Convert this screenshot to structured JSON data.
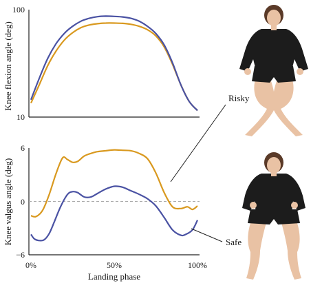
{
  "colors": {
    "risky": "#d9991f",
    "safe": "#4a52a3",
    "zero_line": "#aaaaaa",
    "axis": "#222222",
    "skin": "#e9c2a4",
    "shirt": "#1c1c1c",
    "hair": "#5a3a28"
  },
  "chart_data": [
    {
      "type": "line",
      "title": "",
      "xlabel": "",
      "ylabel": "Knee flexion angle (deg)",
      "yscale": "log",
      "ylim": [
        10,
        100
      ],
      "yticks": [
        "100",
        "10"
      ],
      "xlim": [
        0,
        100
      ],
      "series": [
        {
          "name": "Risky",
          "x": [
            0,
            5,
            10,
            15,
            20,
            25,
            30,
            35,
            40,
            45,
            50,
            55,
            60,
            65,
            70,
            75,
            80,
            85,
            90,
            95,
            100
          ],
          "values": [
            13.5,
            20,
            30,
            41,
            52,
            61,
            68,
            72,
            74,
            75,
            75,
            74.5,
            73,
            70,
            65,
            57,
            45,
            31,
            20,
            14,
            11.5
          ]
        },
        {
          "name": "Safe",
          "x": [
            0,
            5,
            10,
            15,
            20,
            25,
            30,
            35,
            40,
            45,
            50,
            55,
            60,
            65,
            70,
            75,
            80,
            85,
            90,
            95,
            100
          ],
          "values": [
            14.5,
            23,
            35,
            48,
            60,
            70,
            78,
            83,
            86,
            87,
            86.5,
            85.5,
            83,
            78,
            70,
            60,
            47,
            32,
            20,
            14,
            11.5
          ]
        }
      ]
    },
    {
      "type": "line",
      "title": "",
      "xlabel": "Landing phase",
      "ylabel": "Knee valgus angle (deg)",
      "ylim": [
        -6,
        6
      ],
      "yticks": [
        "6",
        "0",
        "−6"
      ],
      "xticks": [
        "0%",
        "50%",
        "100%"
      ],
      "xlim": [
        0,
        100
      ],
      "zero_line": true,
      "series": [
        {
          "name": "Risky",
          "x": [
            0,
            3,
            7,
            11,
            15,
            19,
            22,
            25,
            28,
            32,
            36,
            40,
            45,
            50,
            55,
            60,
            65,
            70,
            75,
            80,
            85,
            90,
            94,
            97,
            100
          ],
          "values": [
            -1.6,
            -1.7,
            -1,
            0.8,
            3.1,
            4.9,
            4.7,
            4.4,
            4.5,
            5.1,
            5.4,
            5.6,
            5.7,
            5.8,
            5.75,
            5.7,
            5.4,
            4.8,
            3.2,
            1,
            -0.6,
            -0.8,
            -0.6,
            -0.9,
            -0.5
          ]
        },
        {
          "name": "Safe",
          "x": [
            0,
            2,
            5,
            8,
            11,
            14,
            18,
            22,
            25,
            28,
            32,
            36,
            40,
            45,
            50,
            55,
            60,
            65,
            70,
            75,
            80,
            85,
            90,
            93,
            97,
            100
          ],
          "values": [
            -3.7,
            -4.2,
            -4.4,
            -4.3,
            -3.6,
            -2.3,
            -0.5,
            0.8,
            1.1,
            1,
            0.5,
            0.5,
            0.9,
            1.4,
            1.7,
            1.6,
            1.2,
            0.8,
            0.3,
            -0.5,
            -1.8,
            -3.2,
            -3.8,
            -3.7,
            -3.2,
            -2.1
          ]
        }
      ]
    }
  ],
  "labels": {
    "risky": "Risky",
    "safe": "Safe"
  }
}
